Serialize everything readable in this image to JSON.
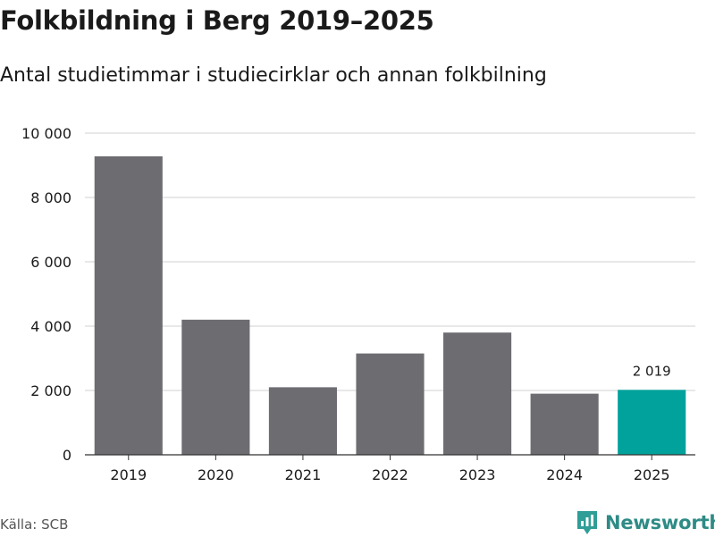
{
  "title": "Folkbildning i Berg 2019–2025",
  "subtitle": "Antal studietimmar i studiecirklar och annan folkbilning",
  "source": "Källa: SCB",
  "brand": {
    "name": "Newsworthy",
    "color": "#2e9e97",
    "icon": "newsworthy-logo-icon"
  },
  "colors": {
    "bar": "#6d6c71",
    "highlight": "#00a29b",
    "grid": "#d9d9d9",
    "axis": "#333333"
  },
  "chart_data": {
    "type": "bar",
    "categories": [
      "2019",
      "2020",
      "2021",
      "2022",
      "2023",
      "2024",
      "2025"
    ],
    "values": [
      9280,
      4200,
      2100,
      3150,
      3800,
      1900,
      2019
    ],
    "highlight_index": 6,
    "data_labels": [
      {
        "index": 6,
        "text": "2 019"
      }
    ],
    "yticks": [
      0,
      2000,
      4000,
      6000,
      8000,
      10000
    ],
    "ytick_labels": [
      "0",
      "2 000",
      "4 000",
      "6 000",
      "8 000",
      "10 000"
    ],
    "ylim": [
      0,
      10000
    ],
    "xlabel": "",
    "ylabel": "",
    "grid": true
  }
}
